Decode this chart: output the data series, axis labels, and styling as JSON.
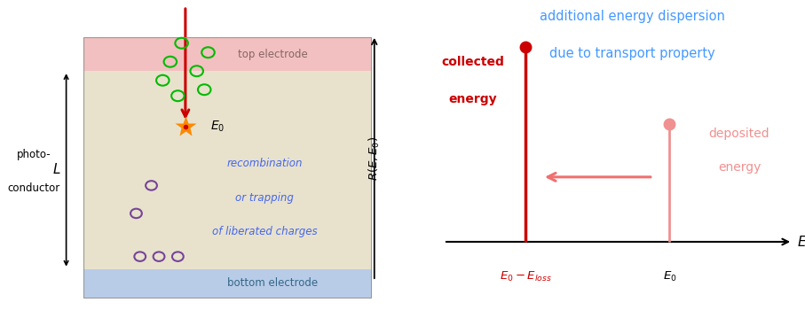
{
  "bg_color": "#ffffff",
  "left_panel": {
    "top_electrode_color": "#f2c0c0",
    "photoconductor_color": "#e8e2cc",
    "bottom_electrode_color": "#b8cce8",
    "top_electrode_label": "top electrode",
    "bottom_electrode_label": "bottom electrode",
    "photoconductor_label1": "photo-",
    "photoconductor_label2": "conductor",
    "L_label": "L",
    "E0_top_label": "$E_0$",
    "E0_interaction_label": "$E_0$",
    "arrow_color": "#cc0000",
    "green_circle_color": "#00bb00",
    "purple_circle_color": "#774499",
    "recomb_text1": "recombination",
    "recomb_text2": "or trapping",
    "recomb_text3": "of liberated charges",
    "recomb_text_color": "#4466ee"
  },
  "right_panel": {
    "collected_color": "#cc0000",
    "deposited_color": "#f09090",
    "arrow_color": "#f07070",
    "xlabel": "$E$",
    "ylabel": "$R(E,E_0)$",
    "x0_label": "$E_0$",
    "x0_loss_label": "$E_0-E_{loss}$",
    "title_line1": "additional energy dispersion",
    "title_line2": "due to transport property",
    "title_color": "#4499ff",
    "collected_label1": "collected",
    "collected_label2": "energy",
    "collected_label_color": "#cc0000",
    "deposited_label1": "deposited",
    "deposited_label2": "energy",
    "deposited_label_color": "#f09090"
  }
}
